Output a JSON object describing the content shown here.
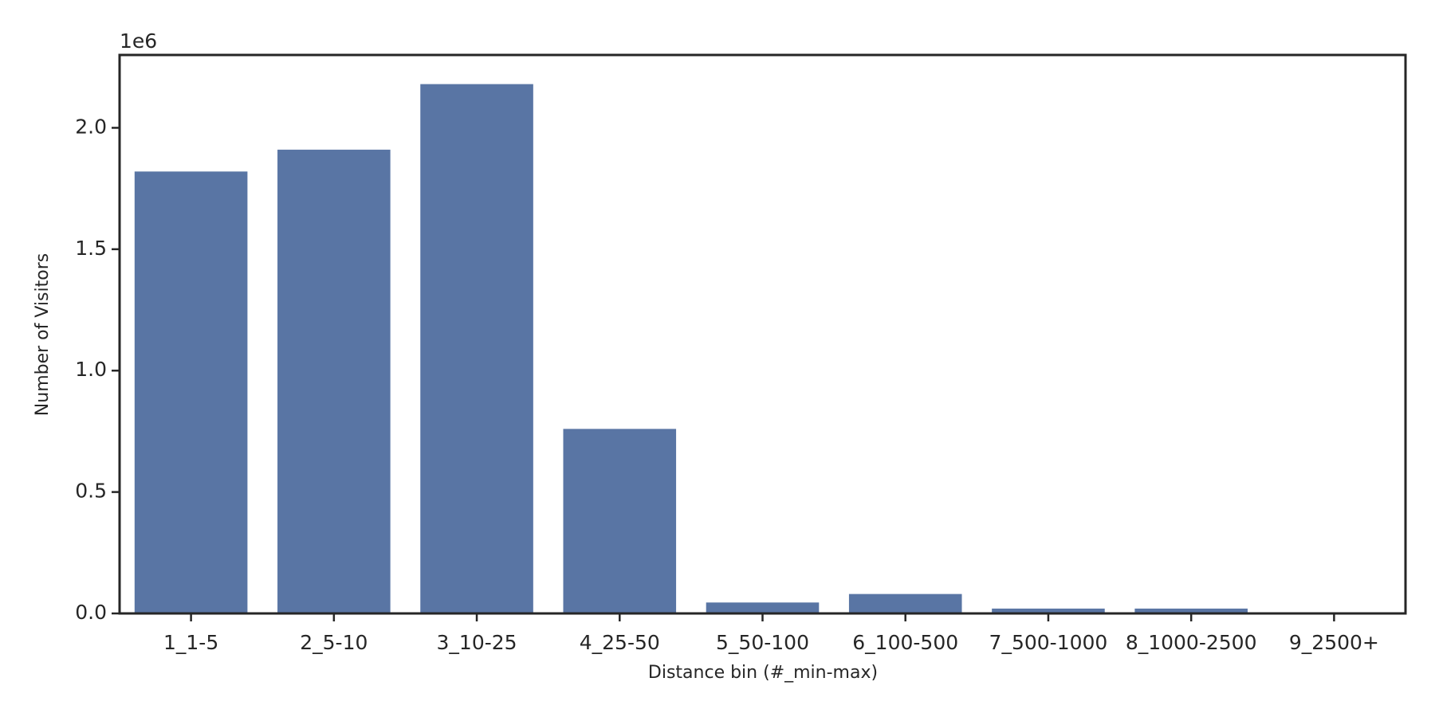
{
  "chart_data": {
    "type": "bar",
    "x_label": "Distance bin (#_min-max)",
    "y_label": "Number of Visitors",
    "y_offset_label": "1e6",
    "categories": [
      "1_1-5",
      "2_5-10",
      "3_10-25",
      "4_25-50",
      "5_50-100",
      "6_100-500",
      "7_500-1000",
      "8_1000-2500",
      "9_2500+"
    ],
    "values": [
      1820000,
      1910000,
      2180000,
      760000,
      45000,
      80000,
      20000,
      20000,
      1000
    ],
    "color": "#5975a4",
    "ylim": [
      0,
      2300000
    ],
    "yticks": [
      {
        "value": 0,
        "label": "0.0"
      },
      {
        "value": 500000,
        "label": "0.5"
      },
      {
        "value": 1000000,
        "label": "1.0"
      },
      {
        "value": 1500000,
        "label": "1.5"
      },
      {
        "value": 2000000,
        "label": "2.0"
      }
    ],
    "grid": false
  }
}
